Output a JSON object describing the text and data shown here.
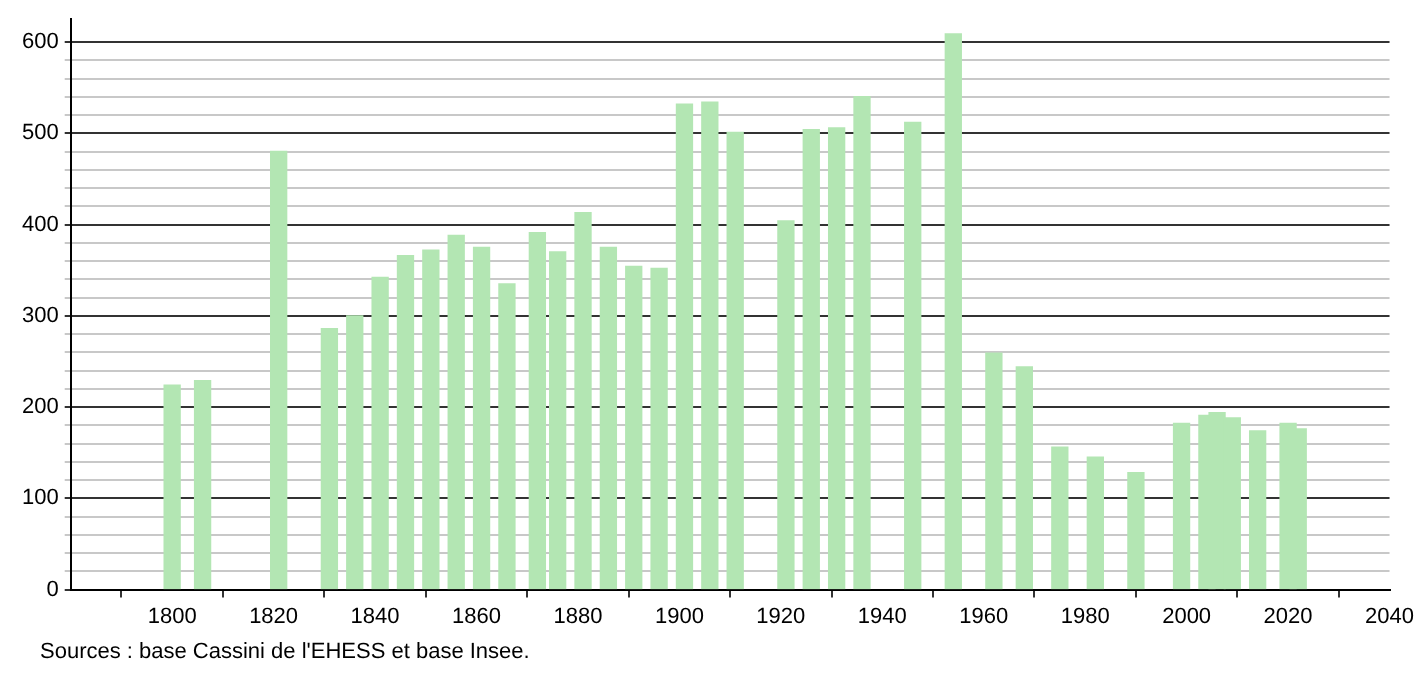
{
  "chart_data": {
    "type": "bar",
    "color": "#b3e6b3",
    "x": [
      1800,
      1806,
      1821,
      1831,
      1836,
      1841,
      1846,
      1851,
      1856,
      1861,
      1866,
      1872,
      1876,
      1881,
      1886,
      1891,
      1896,
      1901,
      1906,
      1911,
      1921,
      1926,
      1931,
      1936,
      1946,
      1954,
      1962,
      1968,
      1975,
      1982,
      1990,
      1999,
      2004,
      2006,
      2009,
      2014,
      2020,
      2022
    ],
    "values": [
      224,
      229,
      480,
      286,
      300,
      342,
      366,
      372,
      388,
      375,
      335,
      391,
      370,
      413,
      375,
      354,
      352,
      532,
      534,
      501,
      404,
      504,
      506,
      540,
      512,
      609,
      259,
      244,
      156,
      145,
      128,
      182,
      191,
      194,
      188,
      174,
      182,
      176
    ],
    "xlim": [
      1780,
      2040
    ],
    "xticks": [
      1800,
      1820,
      1840,
      1860,
      1880,
      1900,
      1920,
      1940,
      1960,
      1980,
      2000,
      2020,
      2040
    ],
    "ylim": [
      0,
      625
    ],
    "yticks": [
      0,
      {
        "value": 20,
        "label": null
      },
      {
        "value": 40,
        "label": null
      },
      {
        "value": 60,
        "label": null
      },
      {
        "value": 80,
        "label": null
      },
      100,
      {
        "value": 120,
        "label": null
      },
      {
        "value": 140,
        "label": null
      },
      {
        "value": 160,
        "label": null
      },
      {
        "value": 180,
        "label": null
      },
      200,
      {
        "value": 220,
        "label": null
      },
      {
        "value": 240,
        "label": null
      },
      {
        "value": 260,
        "label": null
      },
      {
        "value": 280,
        "label": null
      },
      300,
      {
        "value": 320,
        "label": null
      },
      {
        "value": 340,
        "label": null
      },
      {
        "value": 360,
        "label": null
      },
      {
        "value": 380,
        "label": null
      },
      400,
      {
        "value": 420,
        "label": null
      },
      {
        "value": 440,
        "label": null
      },
      {
        "value": 460,
        "label": null
      },
      {
        "value": 480,
        "label": null
      },
      500,
      {
        "value": 520,
        "label": null
      },
      {
        "value": 540,
        "label": null
      },
      {
        "value": 560,
        "label": null
      },
      {
        "value": 580,
        "label": null
      },
      600
    ],
    "grid": "y",
    "annotations": [
      "Sources : base Cassini de l'EHESS et base Insee."
    ]
  }
}
